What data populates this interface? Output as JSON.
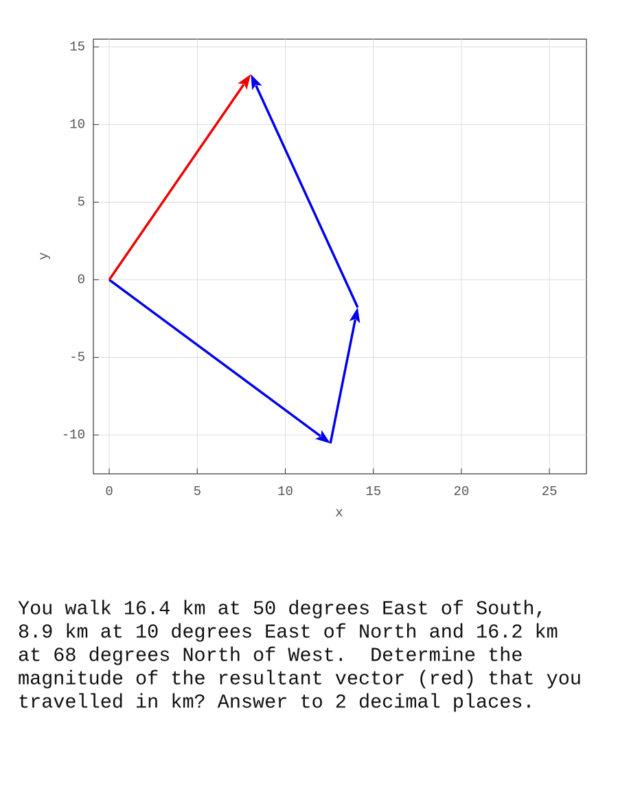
{
  "chart_data": {
    "type": "vector",
    "xlabel": "x",
    "ylabel": "y",
    "xlim": [
      -0.9,
      27.1
    ],
    "ylim": [
      -12.5,
      15.5
    ],
    "xticks": [
      0,
      5,
      10,
      15,
      20,
      25
    ],
    "yticks": [
      -10,
      -5,
      0,
      5,
      10,
      15
    ],
    "grid": true,
    "vectors": [
      {
        "color": "#0000ee",
        "x0": 0,
        "y0": 0,
        "x1": 12.56,
        "y1": -10.54
      },
      {
        "color": "#0000ee",
        "x0": 12.56,
        "y0": -10.54,
        "x1": 14.11,
        "y1": -1.78
      },
      {
        "color": "#0000ee",
        "x0": 14.11,
        "y0": -1.78,
        "x1": 8.04,
        "y1": 13.24
      },
      {
        "color": "#ee0000",
        "x0": 0,
        "y0": 0,
        "x1": 8.04,
        "y1": 13.24
      }
    ]
  },
  "question_lines": [
    "You walk 16.4 km at 50 degrees East of South,",
    "8.9 km at 10 degrees East of North and 16.2 km",
    "at 68 degrees North of West.  Determine the",
    "magnitude of the resultant vector (red) that you",
    "travelled in km? Answer to 2 decimal places."
  ]
}
